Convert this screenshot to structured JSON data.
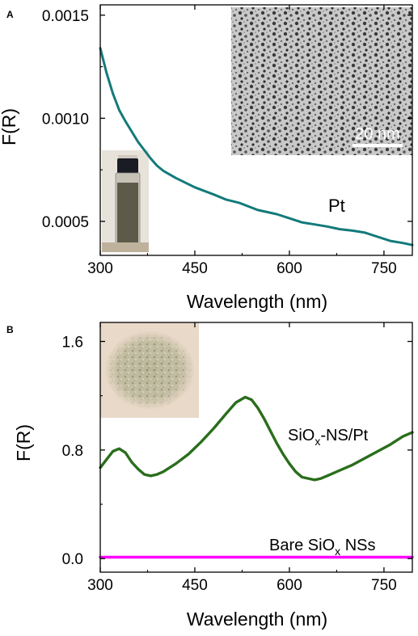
{
  "chart_data": [
    {
      "panel": "A",
      "type": "line",
      "xlabel": "Wavelength (nm)",
      "ylabel": "F(R)",
      "xlim": [
        300,
        795
      ],
      "ylim": [
        0.000335,
        0.00155
      ],
      "xticks": [
        300,
        450,
        600,
        750
      ],
      "xtick_labels": [
        "300",
        "450",
        "600",
        "750"
      ],
      "yticks": [
        0.0005,
        0.001,
        0.0015
      ],
      "ytick_labels": [
        "0.0005",
        "0.0010",
        "0.0015"
      ],
      "grid": false,
      "legend": "none",
      "series": [
        {
          "name": "Pt",
          "color": "#137a7a",
          "x": [
            300,
            305,
            310,
            315,
            320,
            325,
            330,
            340,
            350,
            360,
            370,
            380,
            390,
            400,
            420,
            450,
            480,
            500,
            520,
            550,
            580,
            600,
            620,
            640,
            660,
            680,
            700,
            720,
            740,
            760,
            780,
            795
          ],
          "y": [
            0.00134,
            0.00128,
            0.00122,
            0.00117,
            0.00112,
            0.00108,
            0.00104,
            0.000985,
            0.000935,
            0.000885,
            0.000845,
            0.000805,
            0.00077,
            0.000745,
            0.00071,
            0.000665,
            0.00063,
            0.000605,
            0.00059,
            0.000555,
            0.000535,
            0.000515,
            0.000495,
            0.000485,
            0.000475,
            0.000462,
            0.000455,
            0.000445,
            0.000425,
            0.000405,
            0.000395,
            0.000385
          ]
        }
      ],
      "annotations": [
        {
          "text": "Pt",
          "x": 680,
          "y": 0.000545
        }
      ],
      "inset": {
        "scale_bar_text": "20 nm"
      }
    },
    {
      "panel": "B",
      "type": "line",
      "xlabel": "Wavelength (nm)",
      "ylabel": "F(R)",
      "xlim": [
        300,
        795
      ],
      "ylim": [
        -0.1,
        1.74
      ],
      "xticks": [
        300,
        450,
        600,
        750
      ],
      "xtick_labels": [
        "300",
        "450",
        "600",
        "750"
      ],
      "yticks": [
        0.0,
        0.8,
        1.6
      ],
      "ytick_labels": [
        "0.0",
        "0.8",
        "1.6"
      ],
      "grid": false,
      "legend": "none",
      "series": [
        {
          "name": "SiOx-NS/Pt",
          "color": "#2a6e1c",
          "x": [
            300,
            310,
            320,
            330,
            340,
            350,
            360,
            370,
            380,
            390,
            400,
            410,
            420,
            440,
            460,
            480,
            500,
            515,
            530,
            540,
            550,
            560,
            570,
            580,
            590,
            600,
            610,
            620,
            630,
            640,
            650,
            660,
            670,
            680,
            700,
            720,
            740,
            760,
            780,
            795
          ],
          "y": [
            0.67,
            0.73,
            0.79,
            0.81,
            0.78,
            0.71,
            0.66,
            0.62,
            0.61,
            0.62,
            0.64,
            0.67,
            0.7,
            0.77,
            0.86,
            0.96,
            1.07,
            1.15,
            1.19,
            1.17,
            1.11,
            1.03,
            0.94,
            0.85,
            0.77,
            0.7,
            0.64,
            0.6,
            0.59,
            0.58,
            0.59,
            0.61,
            0.63,
            0.65,
            0.69,
            0.74,
            0.79,
            0.84,
            0.9,
            0.93
          ]
        },
        {
          "name": "Bare SiOx NSs",
          "color": "#ff00ff",
          "x": [
            300,
            795
          ],
          "y": [
            0.01,
            0.01
          ]
        }
      ],
      "annotations": [
        {
          "text": "SiOx-NS/Pt",
          "x": 710,
          "y": 0.93
        },
        {
          "text": "Bare SiOx NSs",
          "x": 710,
          "y": 0.12
        }
      ]
    }
  ],
  "panels": {
    "a": {
      "letter": "A",
      "xlabel": "Wavelength (nm)",
      "ylabel": "F(R)",
      "series_label": "Pt",
      "scale_bar_text": "20 nm"
    },
    "b": {
      "letter": "B",
      "xlabel": "Wavelength (nm)",
      "ylabel": "F(R)",
      "label_sionspt_main": "SiO",
      "label_sionspt_sub": "x",
      "label_sionspt_tail": "-NS/Pt",
      "label_bare_main": "Bare SiO",
      "label_bare_sub": "x",
      "label_bare_tail": " NSs"
    }
  }
}
